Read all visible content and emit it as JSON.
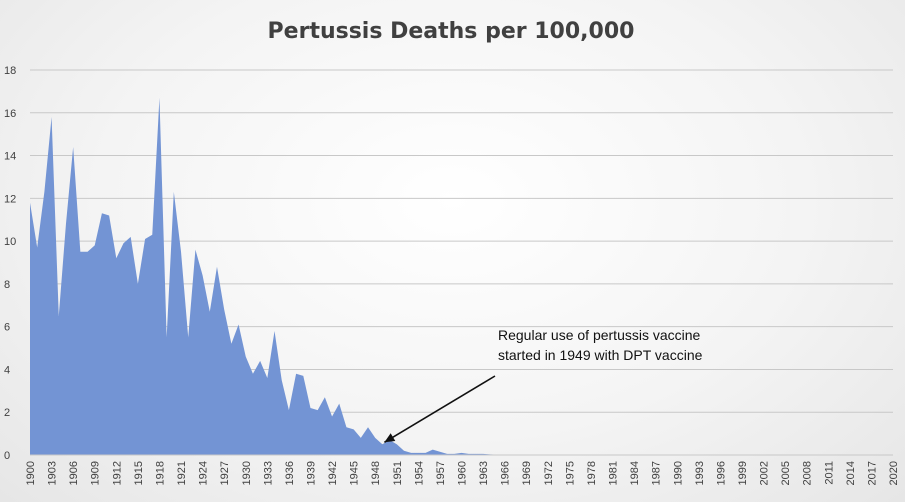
{
  "chart_data": {
    "type": "area",
    "title": "Pertussis Deaths per 100,000",
    "xlabel": "",
    "ylabel": "",
    "ylim": [
      0,
      18
    ],
    "yticks": [
      "0",
      "2",
      "4",
      "6",
      "8",
      "10",
      "12",
      "14",
      "16",
      "18"
    ],
    "xticks": [
      "1900",
      "1903",
      "1906",
      "1909",
      "1912",
      "1915",
      "1918",
      "1921",
      "1924",
      "1927",
      "1930",
      "1933",
      "1936",
      "1939",
      "1942",
      "1945",
      "1948",
      "1951",
      "1954",
      "1957",
      "1960",
      "1963",
      "1966",
      "1969",
      "1972",
      "1975",
      "1978",
      "1981",
      "1984",
      "1987",
      "1990",
      "1993",
      "1996",
      "1999",
      "2002",
      "2005",
      "2008",
      "2011",
      "2014",
      "2017",
      "2020"
    ],
    "grid": true,
    "color": "#7394d4",
    "x": [
      1900,
      1901,
      1902,
      1903,
      1904,
      1905,
      1906,
      1907,
      1908,
      1909,
      1910,
      1911,
      1912,
      1913,
      1914,
      1915,
      1916,
      1917,
      1918,
      1919,
      1920,
      1921,
      1922,
      1923,
      1924,
      1925,
      1926,
      1927,
      1928,
      1929,
      1930,
      1931,
      1932,
      1933,
      1934,
      1935,
      1936,
      1937,
      1938,
      1939,
      1940,
      1941,
      1942,
      1943,
      1944,
      1945,
      1946,
      1947,
      1948,
      1949,
      1950,
      1951,
      1952,
      1953,
      1954,
      1955,
      1956,
      1957,
      1958,
      1959,
      1960,
      1961,
      1962,
      1963,
      1964,
      1965,
      1966,
      1967,
      1968,
      1969,
      1970,
      1971,
      1972,
      1973,
      1974,
      1975,
      1976,
      1977,
      1978,
      1979,
      1980,
      1981,
      1982,
      1983,
      1984,
      1985,
      1986,
      1987,
      1988,
      1989,
      1990,
      1991,
      1992,
      1993,
      1994,
      1995,
      1996,
      1997,
      1998,
      1999,
      2000,
      2001,
      2002,
      2003,
      2004,
      2005,
      2006,
      2007,
      2008,
      2009,
      2010,
      2011,
      2012,
      2013,
      2014,
      2015,
      2016,
      2017,
      2018,
      2019,
      2020
    ],
    "values": [
      11.8,
      9.7,
      12.3,
      15.8,
      6.5,
      10.8,
      14.4,
      9.5,
      9.5,
      9.8,
      11.3,
      11.2,
      9.2,
      9.9,
      10.2,
      8.0,
      10.1,
      10.3,
      16.7,
      5.5,
      12.3,
      9.5,
      5.5,
      9.6,
      8.4,
      6.7,
      8.8,
      6.8,
      5.2,
      6.1,
      4.6,
      3.8,
      4.4,
      3.6,
      5.8,
      3.5,
      2.1,
      3.8,
      3.7,
      2.2,
      2.1,
      2.7,
      1.8,
      2.4,
      1.3,
      1.2,
      0.8,
      1.3,
      0.8,
      0.5,
      0.7,
      0.5,
      0.2,
      0.1,
      0.1,
      0.1,
      0.25,
      0.15,
      0.05,
      0.05,
      0.1,
      0.05,
      0.05,
      0.05,
      0.03,
      0.02,
      0.02,
      0.02,
      0.01,
      0.01,
      0.01,
      0.01,
      0.01,
      0.01,
      0.01,
      0.01,
      0.01,
      0.01,
      0.01,
      0.01,
      0.01,
      0.01,
      0.01,
      0.01,
      0.01,
      0.01,
      0.01,
      0.01,
      0.01,
      0.01,
      0.01,
      0.01,
      0.01,
      0.01,
      0.01,
      0.01,
      0.01,
      0.01,
      0.01,
      0.01,
      0.01,
      0.01,
      0.01,
      0.01,
      0.01,
      0.01,
      0.01,
      0.01,
      0.01,
      0.01,
      0.01,
      0.01,
      0.01,
      0.01,
      0.01,
      0.01,
      0.01,
      0.01,
      0.01,
      0.01,
      0.01
    ],
    "annotation": {
      "lines": [
        "Regular use of pertussis vaccine",
        "started in 1949 with DPT vaccine"
      ],
      "arrow_target": {
        "x": 1949,
        "y": 0.5
      }
    }
  }
}
